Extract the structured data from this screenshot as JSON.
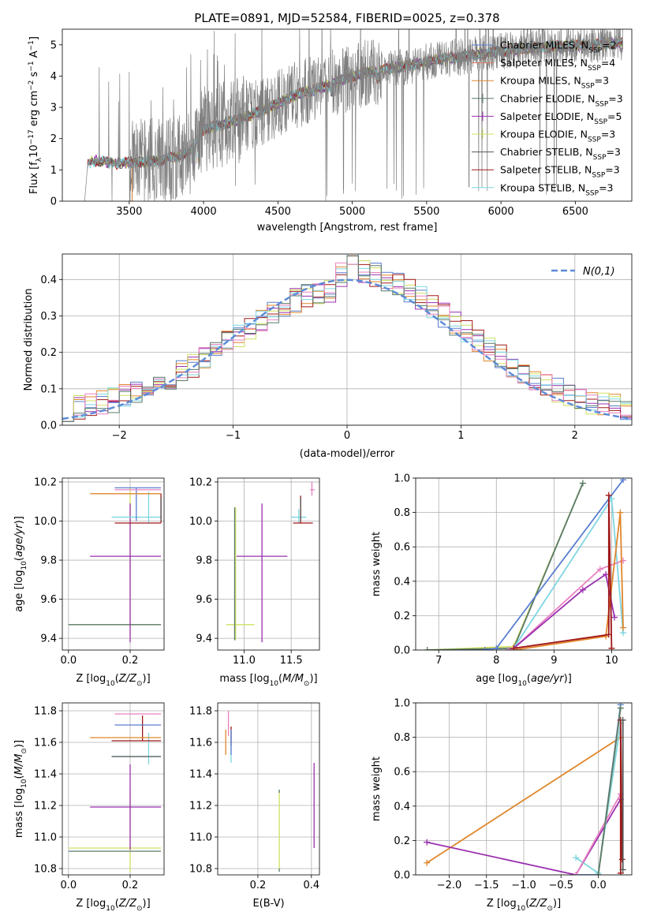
{
  "figure": {
    "title": "PLATE=0891, MJD=52584, FIBERID=0025, z=0.378",
    "palette": {
      "data": "#808080",
      "Chabrier MILES": "#5a7fd0",
      "Salpeter MILES": "#e07a5f",
      "Kroupa MILES": "#e0862a",
      "Chabrier ELODIE": "#5a7a6a",
      "Salpeter ELODIE": "#9b30b0",
      "Kroupa ELODIE": "#d0e060",
      "Chabrier STELIB": "#555555",
      "Salpeter STELIB": "#a01818",
      "Kroupa STELIB": "#7fd6e0",
      "pink": "#e880c0",
      "gaussian": "#5b8bd8",
      "grid": "#b0b0b0"
    }
  },
  "chart_data": [
    {
      "id": "spectrum",
      "type": "line",
      "title": "PLATE=0891, MJD=52584, FIBERID=0025, z=0.378",
      "xlabel": "wavelength [Angstrom, rest frame]",
      "ylabel": "Flux [f_λ 10^-17 erg cm^-2 s^-1 A^-1]",
      "xlim": [
        3050,
        6880
      ],
      "ylim": [
        0,
        5.5
      ],
      "xticks": [
        3500,
        4000,
        4500,
        5000,
        5500,
        6000,
        6500
      ],
      "yticks": [
        0,
        1,
        2,
        3,
        4,
        5
      ],
      "grid": false,
      "legend_position": "top-right",
      "legend": [
        {
          "name": "Chabrier MILES",
          "nssp": "2"
        },
        {
          "name": "Salpeter MILES",
          "nssp": "4"
        },
        {
          "name": "Kroupa MILES",
          "nssp": "3"
        },
        {
          "name": "Chabrier ELODIE",
          "nssp": "3"
        },
        {
          "name": "Salpeter ELODIE",
          "nssp": "5"
        },
        {
          "name": "Kroupa ELODIE",
          "nssp": "3"
        },
        {
          "name": "Chabrier STELIB",
          "nssp": "3"
        },
        {
          "name": "Salpeter STELIB",
          "nssp": "3"
        },
        {
          "name": "Kroupa STELIB",
          "nssp": "3"
        }
      ],
      "continuum": {
        "x": [
          3200,
          3220,
          3300,
          3400,
          3500,
          3600,
          3700,
          3800,
          3900,
          4000,
          4200,
          4400,
          4600,
          4800,
          5000,
          5200,
          5400,
          5600,
          5800,
          6000,
          6200,
          6400,
          6600,
          6800
        ],
        "y": [
          0.0,
          1.25,
          1.3,
          1.2,
          1.25,
          1.25,
          1.3,
          1.4,
          1.55,
          2.3,
          2.55,
          2.9,
          3.35,
          3.65,
          4.0,
          4.2,
          4.35,
          4.55,
          4.65,
          4.8,
          4.9,
          4.95,
          5.0,
          5.05
        ]
      }
    },
    {
      "id": "residuals",
      "type": "line",
      "xlabel": "(data-model)/error",
      "ylabel": "Normed distribution",
      "xlim": [
        -2.5,
        2.5
      ],
      "ylim": [
        0,
        0.47
      ],
      "xticks": [
        -2,
        -1,
        0,
        1,
        2
      ],
      "yticks": [
        0.0,
        0.1,
        0.2,
        0.3,
        0.4
      ],
      "grid": true,
      "legend_position": "top-right",
      "gaussian_label": "N(0,1)",
      "bin_width": 0.1
    },
    {
      "id": "age-vs-Z",
      "type": "scatter",
      "xlabel": "Z [log10(Z/Z⊙)]",
      "ylabel": "age [log10(age/yr)]",
      "xlim": [
        -0.02,
        0.31
      ],
      "ylim": [
        9.34,
        10.22
      ],
      "xticks": [
        0.0,
        0.2
      ],
      "yticks": [
        9.4,
        9.6,
        9.8,
        10.0,
        10.2
      ],
      "grid": true,
      "points": [
        {
          "c": "Kroupa ELODIE",
          "x": 0.2,
          "xerr": [
            0.2,
            0.1
          ],
          "y": 9.47,
          "yerr": [
            0.08,
            0.7
          ]
        },
        {
          "c": "Chabrier ELODIE",
          "x": 0.2,
          "xerr": [
            0.2,
            0.1
          ],
          "y": 9.47,
          "yerr": [
            0.0,
            0.0
          ]
        },
        {
          "c": "Salpeter ELODIE",
          "x": 0.2,
          "xerr": [
            0.13,
            0.1
          ],
          "y": 9.82,
          "yerr": [
            0.44,
            0.27
          ]
        },
        {
          "c": "Kroupa STELIB",
          "x": 0.26,
          "xerr": [
            0.12,
            0.04
          ],
          "y": 10.02,
          "yerr": [
            0.03,
            0.13
          ]
        },
        {
          "c": "Chabrier MILES",
          "x": 0.22,
          "xerr": [
            0.07,
            0.08
          ],
          "y": 10.17,
          "yerr": [
            0.17,
            0.0
          ]
        },
        {
          "c": "pink",
          "x": 0.22,
          "xerr": [
            0.07,
            0.08
          ],
          "y": 10.16,
          "yerr": [
            0.0,
            0.0
          ]
        },
        {
          "c": "Kroupa MILES",
          "x": 0.2,
          "xerr": [
            0.13,
            0.1
          ],
          "y": 10.14,
          "yerr": [
            0.0,
            0.0
          ]
        },
        {
          "c": "Salpeter STELIB",
          "x": 0.3,
          "xerr": [
            0.15,
            0.0
          ],
          "y": 9.99,
          "yerr": [
            0.0,
            0.15
          ]
        },
        {
          "c": "Chabrier STELIB",
          "x": 0.3,
          "xerr": [
            0.0,
            0.0
          ],
          "y": 10.0,
          "yerr": [
            0.0,
            0.12
          ]
        }
      ]
    },
    {
      "id": "age-vs-mass",
      "type": "scatter",
      "xlabel": "mass [log10(M/M⊙)]",
      "ylabel": "",
      "xlim": [
        10.72,
        11.8
      ],
      "ylim": [
        9.34,
        10.22
      ],
      "xticks": [
        11.0,
        11.5
      ],
      "yticks": [
        9.4,
        9.6,
        9.8,
        10.0,
        10.2
      ],
      "grid": true,
      "points": [
        {
          "c": "Kroupa ELODIE",
          "x": 10.91,
          "xerr": [
            0.1,
            0.2
          ],
          "y": 9.47,
          "yerr": [
            0.08,
            0.6
          ]
        },
        {
          "c": "Chabrier ELODIE",
          "x": 10.9,
          "xerr": [
            0.0,
            0.0
          ],
          "y": 9.47,
          "yerr": [
            0.08,
            0.6
          ]
        },
        {
          "c": "Salpeter ELODIE",
          "x": 11.19,
          "xerr": [
            0.27,
            0.27
          ],
          "y": 9.82,
          "yerr": [
            0.44,
            0.27
          ]
        },
        {
          "c": "Kroupa STELIB",
          "x": 11.58,
          "xerr": [
            0.08,
            0.08
          ],
          "y": 10.02,
          "yerr": [
            0.03,
            0.04
          ]
        },
        {
          "c": "Salpeter STELIB",
          "x": 11.6,
          "xerr": [
            0.08,
            0.13
          ],
          "y": 9.99,
          "yerr": [
            0.0,
            0.14
          ]
        },
        {
          "c": "Chabrier STELIB",
          "x": 11.6,
          "xerr": [
            0.0,
            0.0
          ],
          "y": 10.0,
          "yerr": [
            0.0,
            0.12
          ]
        },
        {
          "c": "Kroupa MILES",
          "x": 11.63,
          "xerr": [
            0.0,
            0.0
          ],
          "y": 10.14,
          "yerr": [
            0.0,
            0.0
          ]
        },
        {
          "c": "pink",
          "x": 11.72,
          "xerr": [
            0.02,
            0.03
          ],
          "y": 10.16,
          "yerr": [
            0.03,
            0.04
          ]
        },
        {
          "c": "Chabrier MILES",
          "x": 11.71,
          "xerr": [
            0.0,
            0.0
          ],
          "y": 10.17,
          "yerr": [
            0.0,
            0.0
          ]
        }
      ]
    },
    {
      "id": "weight-vs-age",
      "type": "line",
      "xlabel": "age [log10(age/yr)]",
      "ylabel": "mass weight",
      "xlim": [
        6.6,
        10.35
      ],
      "ylim": [
        0,
        1.0
      ],
      "xticks": [
        7,
        8,
        9,
        10
      ],
      "yticks": [
        0.0,
        0.2,
        0.4,
        0.6,
        0.8,
        1.0
      ],
      "grid": true,
      "series": [
        {
          "c": "Kroupa ELODIE",
          "x": [
            6.8,
            8.3,
            9.5
          ],
          "y": [
            0.0,
            0.02,
            0.97
          ]
        },
        {
          "c": "Chabrier ELODIE",
          "x": [
            6.8,
            8.3,
            9.5
          ],
          "y": [
            0.0,
            0.01,
            0.97
          ]
        },
        {
          "c": "Chabrier MILES",
          "x": [
            7.8,
            8.0,
            10.2
          ],
          "y": [
            0.0,
            0.01,
            0.99
          ]
        },
        {
          "c": "Kroupa STELIB",
          "x": [
            8.2,
            8.3,
            10.0,
            10.2
          ],
          "y": [
            0.0,
            0.01,
            0.88,
            0.1
          ]
        },
        {
          "c": "pink",
          "x": [
            8.2,
            8.3,
            9.8,
            10.2
          ],
          "y": [
            0.0,
            0.01,
            0.47,
            0.52
          ]
        },
        {
          "c": "Salpeter ELODIE",
          "x": [
            8.3,
            9.5,
            9.9,
            10.05
          ],
          "y": [
            0.01,
            0.35,
            0.44,
            0.19
          ]
        },
        {
          "c": "Kroupa MILES",
          "x": [
            8.3,
            9.9,
            10.15,
            10.2
          ],
          "y": [
            0.0,
            0.08,
            0.8,
            0.13
          ]
        },
        {
          "c": "Salpeter STELIB",
          "x": [
            8.3,
            9.95,
            9.95,
            10.0
          ],
          "y": [
            0.01,
            0.09,
            0.9,
            0.01
          ]
        }
      ]
    },
    {
      "id": "mass-vs-Z",
      "type": "scatter",
      "xlabel": "Z [log10(Z/Z⊙)]",
      "ylabel": "mass [log10(M/M⊙)]",
      "xlim": [
        -0.02,
        0.31
      ],
      "ylim": [
        10.76,
        11.85
      ],
      "xticks": [
        0.0,
        0.2
      ],
      "yticks": [
        10.8,
        11.0,
        11.2,
        11.4,
        11.6,
        11.8
      ],
      "grid": true,
      "points": [
        {
          "c": "Kroupa ELODIE",
          "x": 0.2,
          "xerr": [
            0.2,
            0.1
          ],
          "y": 10.93,
          "yerr": [
            0.15,
            0.37
          ]
        },
        {
          "c": "Chabrier ELODIE",
          "x": 0.2,
          "xerr": [
            0.2,
            0.1
          ],
          "y": 10.91,
          "yerr": [
            0.0,
            0.0
          ]
        },
        {
          "c": "Salpeter ELODIE",
          "x": 0.2,
          "xerr": [
            0.13,
            0.1
          ],
          "y": 11.19,
          "yerr": [
            0.27,
            0.27
          ]
        },
        {
          "c": "Kroupa STELIB",
          "x": 0.26,
          "xerr": [
            0.12,
            0.04
          ],
          "y": 11.51,
          "yerr": [
            0.05,
            0.15
          ]
        },
        {
          "c": "Chabrier STELIB",
          "x": 0.22,
          "xerr": [
            0.08,
            0.08
          ],
          "y": 11.51,
          "yerr": [
            0.0,
            0.0
          ]
        },
        {
          "c": "Salpeter STELIB",
          "x": 0.24,
          "xerr": [
            0.1,
            0.06
          ],
          "y": 11.61,
          "yerr": [
            0.0,
            0.16
          ]
        },
        {
          "c": "Kroupa MILES",
          "x": 0.2,
          "xerr": [
            0.13,
            0.1
          ],
          "y": 11.63,
          "yerr": [
            0.0,
            0.0
          ]
        },
        {
          "c": "Chabrier MILES",
          "x": 0.22,
          "xerr": [
            0.07,
            0.08
          ],
          "y": 11.71,
          "yerr": [
            0.0,
            0.0
          ]
        },
        {
          "c": "pink",
          "x": 0.22,
          "xerr": [
            0.07,
            0.08
          ],
          "y": 11.78,
          "yerr": [
            0.0,
            0.0
          ]
        }
      ]
    },
    {
      "id": "mass-vs-EBV",
      "type": "scatter",
      "xlabel": "E(B-V)",
      "ylabel": "",
      "xlim": [
        0.05,
        0.43
      ],
      "ylim": [
        10.76,
        11.85
      ],
      "xticks": [
        0.2,
        0.4
      ],
      "yticks": [
        10.8,
        11.0,
        11.2,
        11.4,
        11.6,
        11.8
      ],
      "grid": true,
      "points": [
        {
          "c": "Kroupa ELODIE",
          "x": 0.28,
          "xerr": [
            0.0,
            0.0
          ],
          "y": 11.05,
          "yerr": [
            0.25,
            0.25
          ]
        },
        {
          "c": "Chabrier ELODIE",
          "x": 0.28,
          "xerr": [
            0.0,
            0.0
          ],
          "y": 10.78,
          "yerr": [
            0.0,
            0.02
          ]
        },
        {
          "c": "Chabrier ELODIE",
          "x": 0.28,
          "xerr": [
            0.0,
            0.0
          ],
          "y": 11.28,
          "yerr": [
            0.0,
            0.02
          ]
        },
        {
          "c": "Salpeter ELODIE",
          "x": 0.41,
          "xerr": [
            0.0,
            0.0
          ],
          "y": 11.2,
          "yerr": [
            0.27,
            0.27
          ]
        },
        {
          "c": "Kroupa MILES",
          "x": 0.08,
          "xerr": [
            0.0,
            0.0
          ],
          "y": 11.6,
          "yerr": [
            0.08,
            0.08
          ]
        },
        {
          "c": "Kroupa STELIB",
          "x": 0.1,
          "xerr": [
            0.0,
            0.0
          ],
          "y": 11.57,
          "yerr": [
            0.1,
            0.1
          ]
        },
        {
          "c": "Salpeter STELIB",
          "x": 0.1,
          "xerr": [
            0.0,
            0.0
          ],
          "y": 11.64,
          "yerr": [
            0.06,
            0.06
          ]
        },
        {
          "c": "pink",
          "x": 0.09,
          "xerr": [
            0.0,
            0.0
          ],
          "y": 11.72,
          "yerr": [
            0.08,
            0.08
          ]
        },
        {
          "c": "Chabrier MILES",
          "x": 0.1,
          "xerr": [
            0.0,
            0.0
          ],
          "y": 11.6,
          "yerr": [
            0.08,
            0.08
          ]
        }
      ]
    },
    {
      "id": "weight-vs-Z",
      "type": "line",
      "xlabel": "Z [log10(Z/Z⊙)]",
      "ylabel": "mass weight",
      "xlim": [
        -2.45,
        0.45
      ],
      "ylim": [
        0,
        1.0
      ],
      "xticks": [
        -2.0,
        -1.5,
        -1.0,
        -0.5,
        0.0
      ],
      "xticklabels": [
        "−2.0",
        "−1.5",
        "−1.0",
        "−0.5",
        "0.0"
      ],
      "yticks": [
        0.0,
        0.2,
        0.4,
        0.6,
        0.8,
        1.0
      ],
      "grid": true,
      "series": [
        {
          "c": "Kroupa MILES",
          "x": [
            -2.3,
            0.3
          ],
          "y": [
            0.07,
            0.8
          ]
        },
        {
          "c": "Salpeter ELODIE",
          "x": [
            -2.3,
            -0.3,
            0.3
          ],
          "y": [
            0.19,
            0.0,
            0.44
          ]
        },
        {
          "c": "Kroupa STELIB",
          "x": [
            -0.3,
            0.0,
            0.3
          ],
          "y": [
            0.1,
            0.01,
            0.88
          ]
        },
        {
          "c": "Chabrier MILES",
          "x": [
            -0.3,
            0.0,
            0.3
          ],
          "y": [
            0.0,
            0.0,
            0.99
          ]
        },
        {
          "c": "pink",
          "x": [
            -0.3,
            0.3
          ],
          "y": [
            0.0,
            0.47
          ]
        },
        {
          "c": "Kroupa ELODIE",
          "x": [
            0.0,
            0.3
          ],
          "y": [
            0.0,
            0.97
          ]
        },
        {
          "c": "Chabrier ELODIE",
          "x": [
            0.0,
            0.3
          ],
          "y": [
            0.0,
            0.97
          ]
        },
        {
          "c": "Salpeter STELIB",
          "x": [
            0.3,
            0.3,
            0.32
          ],
          "y": [
            0.01,
            0.9,
            0.09
          ]
        },
        {
          "c": "Chabrier STELIB",
          "x": [
            0.33,
            0.33
          ],
          "y": [
            0.03,
            0.9
          ]
        }
      ]
    }
  ]
}
